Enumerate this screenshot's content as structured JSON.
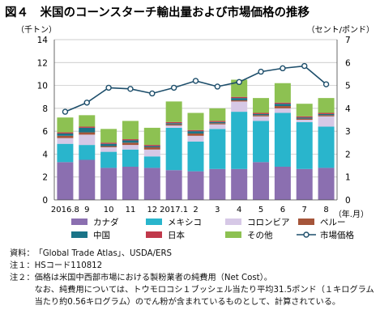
{
  "chart_data": {
    "type": "bar",
    "title": "図４　米国のコーンスターチ輸出量および市場価格の推移",
    "left_unit": "（千トン）",
    "right_unit": "（セント/ポンド）",
    "x_unit": "（年.月）",
    "categories": [
      "2016.8",
      "9",
      "10",
      "11",
      "12",
      "2017.1",
      "2",
      "3",
      "4",
      "5",
      "6",
      "7",
      "8"
    ],
    "ylim_left": [
      0,
      14
    ],
    "yticks_left": [
      0,
      2,
      4,
      6,
      8,
      10,
      12,
      14
    ],
    "ylim_right": [
      0,
      7
    ],
    "yticks_right": [
      0,
      1,
      2,
      3,
      4,
      5,
      6,
      7
    ],
    "grid": true,
    "legend_position": "bottom",
    "series": [
      {
        "name": "カナダ",
        "kind": "bar",
        "axis": "left",
        "color": "#8b6fb0",
        "values": [
          3.3,
          3.5,
          2.8,
          2.9,
          2.8,
          2.6,
          2.5,
          2.7,
          2.7,
          3.3,
          2.9,
          2.7,
          2.8
        ]
      },
      {
        "name": "メキシコ",
        "kind": "bar",
        "axis": "left",
        "color": "#29b5cc",
        "values": [
          1.6,
          1.3,
          1.4,
          1.5,
          1.0,
          3.7,
          2.6,
          3.5,
          5.0,
          3.6,
          4.7,
          4.1,
          3.6
        ]
      },
      {
        "name": "コロンビア",
        "kind": "bar",
        "axis": "left",
        "color": "#d6c8e6",
        "values": [
          0.5,
          0.9,
          0.4,
          0.4,
          0.6,
          0.2,
          0.5,
          0.4,
          0.9,
          0.4,
          0.4,
          0.2,
          0.9
        ]
      },
      {
        "name": "ペルー",
        "kind": "bar",
        "axis": "left",
        "color": "#a5553a",
        "values": [
          0.2,
          0.2,
          0.1,
          0.2,
          0.2,
          0.1,
          0.2,
          0.1,
          0.1,
          0.1,
          0.2,
          0.1,
          0.1
        ]
      },
      {
        "name": "中国",
        "kind": "bar",
        "axis": "left",
        "color": "#1a7488",
        "values": [
          0.2,
          0.4,
          0.2,
          0.2,
          0.1,
          0.1,
          0.2,
          0.1,
          0.2,
          0.1,
          0.2,
          0.1,
          0.1
        ]
      },
      {
        "name": "日本",
        "kind": "bar",
        "axis": "left",
        "color": "#c0394b",
        "values": [
          0.1,
          0.1,
          0.1,
          0.1,
          0.1,
          0.1,
          0.1,
          0.1,
          0.1,
          0.1,
          0.1,
          0.1,
          0.1
        ]
      },
      {
        "name": "その他",
        "kind": "bar",
        "axis": "left",
        "color": "#8dc152",
        "values": [
          1.3,
          1.0,
          1.2,
          1.6,
          1.5,
          1.8,
          1.5,
          1.1,
          1.5,
          1.3,
          1.7,
          1.1,
          1.3
        ]
      },
      {
        "name": "市場価格",
        "kind": "line",
        "axis": "right",
        "color": "#1d4e6b",
        "values": [
          3.85,
          4.25,
          4.9,
          4.85,
          4.65,
          4.9,
          5.2,
          4.95,
          5.15,
          5.6,
          5.75,
          5.85,
          5.05
        ]
      }
    ]
  },
  "notes": [
    {
      "label": "資料：",
      "text": "「Global Trade Atlas」、USDA/ERS"
    },
    {
      "label": "注１：",
      "text": "HSコード110812"
    },
    {
      "label": "注２：",
      "text": "価格は米国中西部市場における製粉業者の純費用（Net Cost）。\nなお、純費用については、トウモロコシ１ブッシェル当たり平均31.5ポンド（１キログラム当たり約0.56キログラム）のでん粉が含まれているものとして、計算されている。"
    }
  ]
}
